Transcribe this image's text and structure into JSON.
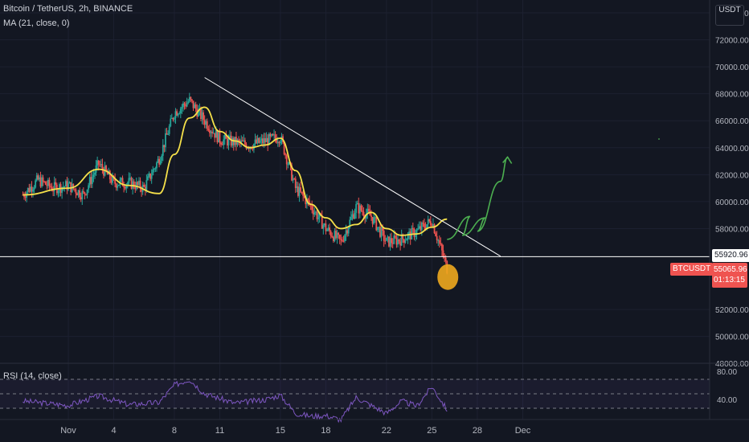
{
  "title": "Bitcoin / TetherUS, 2h, BINANCE",
  "indicator_label": "MA (21, close, 0)",
  "rsi_label": "RSI (14, close)",
  "currency": "USDT",
  "symbol_badge": "BTCUSDT",
  "last_price": "55065.96",
  "countdown": "01:13:15",
  "level_label": "55920.96",
  "colors": {
    "background": "#131722",
    "up": "#26a69a",
    "down": "#ef5350",
    "ma": "#f5e04a",
    "trendline": "#ffffff",
    "projection": "#4caf50",
    "rsi": "#7e57c2",
    "marker": "#f0a81e"
  },
  "chart_data": [
    {
      "type": "candlestick",
      "title": "Bitcoin / TetherUS, 2h, BINANCE",
      "x_ticks": [
        "Nov",
        "4",
        "8",
        "11",
        "15",
        "18",
        "22",
        "25",
        "28",
        "Dec"
      ],
      "y_ticks": [
        "74000.00",
        "72000.00",
        "70000.00",
        "68000.00",
        "66000.00",
        "64000.00",
        "62000.00",
        "60000.00",
        "58000.00",
        "52000.00",
        "50000.00",
        "48000.00"
      ],
      "ylim": [
        47000,
        75000
      ],
      "series": [
        {
          "name": "price",
          "x": [
            "Oct 29",
            "Oct 30",
            "Oct 31",
            "Nov 1",
            "Nov 2",
            "Nov 3",
            "Nov 4",
            "Nov 5",
            "Nov 6",
            "Nov 7",
            "Nov 8",
            "Nov 9",
            "Nov 10",
            "Nov 11",
            "Nov 12",
            "Nov 13",
            "Nov 14",
            "Nov 15",
            "Nov 16",
            "Nov 17",
            "Nov 18",
            "Nov 19",
            "Nov 20",
            "Nov 21",
            "Nov 22",
            "Nov 23",
            "Nov 24",
            "Nov 25",
            "Nov 26"
          ],
          "y": [
            60500,
            61600,
            61000,
            61200,
            60500,
            62800,
            61400,
            61400,
            61000,
            63200,
            66600,
            67500,
            66000,
            64600,
            64400,
            64200,
            64500,
            64800,
            61000,
            59700,
            58000,
            57000,
            59600,
            58900,
            57000,
            57200,
            57800,
            58600,
            55066
          ]
        },
        {
          "name": "MA (21, close, 0)",
          "x": [
            "Oct 29",
            "Nov 1",
            "Nov 3",
            "Nov 5",
            "Nov 7",
            "Nov 8",
            "Nov 9",
            "Nov 10",
            "Nov 11",
            "Nov 12",
            "Nov 13",
            "Nov 14",
            "Nov 15",
            "Nov 16",
            "Nov 17",
            "Nov 18",
            "Nov 19",
            "Nov 20",
            "Nov 21",
            "Nov 22",
            "Nov 23",
            "Nov 24",
            "Nov 25",
            "Nov 26"
          ],
          "y": [
            60500,
            61000,
            62400,
            61200,
            60600,
            63500,
            66200,
            67000,
            65200,
            64500,
            64000,
            64200,
            64700,
            62300,
            59800,
            58800,
            58000,
            58300,
            59200,
            58000,
            57500,
            57600,
            58100,
            58700
          ]
        }
      ],
      "annotations": {
        "horizontal_level": 55920.96,
        "trendline": {
          "from": [
            "Nov 10",
            69200
          ],
          "to": [
            "Nov 29",
            55950
          ]
        },
        "projection_path": [
          [
            "Nov 26",
            57200
          ],
          [
            "Nov 27",
            58900
          ],
          [
            "Nov 27",
            57500
          ],
          [
            "Nov 28",
            58800
          ],
          [
            "Nov 28",
            57800
          ],
          [
            "Nov 29",
            61500
          ],
          [
            "Nov 30",
            63300
          ]
        ],
        "marker": [
          "Nov 26",
          55000
        ]
      }
    },
    {
      "type": "line",
      "title": "RSI (14, close)",
      "y_ticks": [
        "80.00",
        "40.00"
      ],
      "ylim": [
        20,
        90
      ],
      "series": [
        {
          "name": "RSI",
          "x": [
            "Oct 29",
            "Nov 1",
            "Nov 3",
            "Nov 5",
            "Nov 7",
            "Nov 8",
            "Nov 9",
            "Nov 10",
            "Nov 12",
            "Nov 14",
            "Nov 15",
            "Nov 16",
            "Nov 17",
            "Nov 18",
            "Nov 19",
            "Nov 20",
            "Nov 21",
            "Nov 22",
            "Nov 23",
            "Nov 24",
            "Nov 25",
            "Nov 26"
          ],
          "y": [
            50,
            44,
            57,
            45,
            48,
            72,
            80,
            60,
            47,
            52,
            58,
            33,
            29,
            30,
            24,
            55,
            44,
            33,
            50,
            43,
            70,
            38
          ]
        }
      ]
    }
  ]
}
